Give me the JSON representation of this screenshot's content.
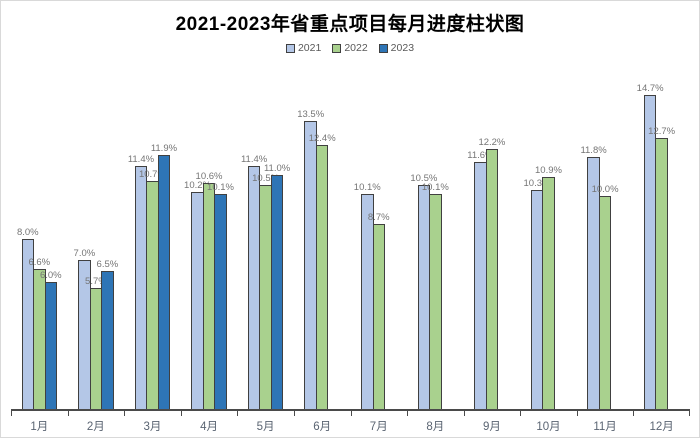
{
  "chart_data": {
    "type": "bar",
    "title": "2021-2023年省重点项目每月进度柱状图",
    "categories": [
      "1月",
      "2月",
      "3月",
      "4月",
      "5月",
      "6月",
      "7月",
      "8月",
      "9月",
      "10月",
      "11月",
      "12月"
    ],
    "series": [
      {
        "name": "2021",
        "color": "#b4c7e7",
        "values": [
          8.0,
          7.0,
          11.4,
          10.2,
          11.4,
          13.5,
          10.1,
          10.5,
          11.6,
          10.3,
          11.8,
          14.7
        ],
        "labels": [
          "8.0%",
          "7.0%",
          "11.4%",
          "10.2%",
          "11.4%",
          "13.5%",
          "10.1%",
          "10.5%",
          "11.6%",
          "10.3%",
          "11.8%",
          "14.7%"
        ]
      },
      {
        "name": "2022",
        "color": "#a9d18e",
        "values": [
          6.6,
          5.7,
          10.7,
          10.6,
          10.5,
          12.4,
          8.7,
          10.1,
          12.2,
          10.9,
          10.0,
          12.7
        ],
        "labels": [
          "6.6%",
          "5.7%",
          "10.7%",
          "10.6%",
          "10.5%",
          "12.4%",
          "8.7%",
          "10.1%",
          "12.2%",
          "10.9%",
          "10.0%",
          "12.7%"
        ]
      },
      {
        "name": "2023",
        "color": "#2e75b6",
        "values": [
          6.0,
          6.5,
          11.9,
          10.1,
          11.0,
          null,
          null,
          null,
          null,
          null,
          null,
          null
        ],
        "labels": [
          "6.0%",
          "6.5%",
          "11.9%",
          "10.1%",
          "11.0%",
          null,
          null,
          null,
          null,
          null,
          null,
          null
        ]
      }
    ],
    "xlabel": "",
    "ylabel": "",
    "ylim": [
      0,
      15.6
    ],
    "grid": false,
    "legend_position": "top",
    "value_suffix": "%",
    "axis_color": "#4a4a4a",
    "bar_border_color": "#404040",
    "data_label_color": "#757575",
    "axis_label_color": "#5a6472"
  }
}
